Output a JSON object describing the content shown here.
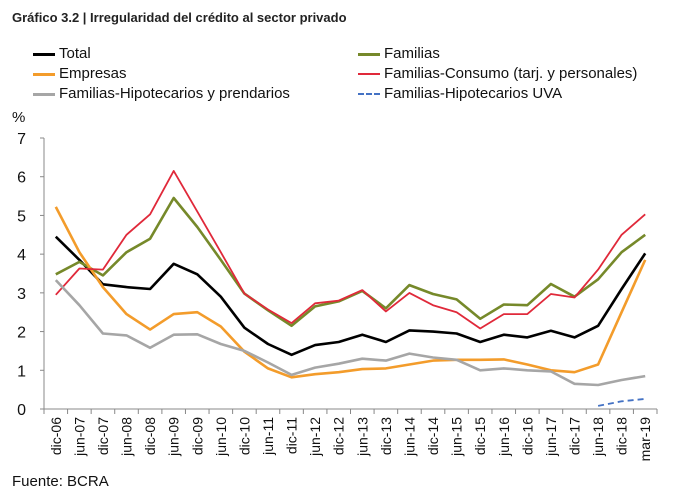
{
  "title": "Gráfico 3.2 | Irregularidad del crédito al sector privado",
  "source": "Fuente: BCRA",
  "chart_data": {
    "type": "line",
    "ylabel": "%",
    "ylim": [
      0,
      7
    ],
    "yticks": [
      "0",
      "1",
      "2",
      "3",
      "4",
      "5",
      "6",
      "7"
    ],
    "grid": false,
    "legend": "top",
    "categories": [
      "dic-06",
      "jun-07",
      "dic-07",
      "jun-08",
      "dic-08",
      "jun-09",
      "dic-09",
      "jun-10",
      "dic-10",
      "jun-11",
      "dic-11",
      "jun-12",
      "dic-12",
      "jun-13",
      "dic-13",
      "jun-14",
      "dic-14",
      "jun-15",
      "dic-15",
      "jun-16",
      "dic-16",
      "jun-17",
      "dic-17",
      "jun-18",
      "dic-18",
      "mar-19"
    ],
    "series": [
      {
        "name": "Total",
        "color": "#000000",
        "dash": false,
        "values": [
          4.45,
          3.85,
          3.22,
          3.15,
          3.1,
          3.75,
          3.48,
          2.9,
          2.1,
          1.68,
          1.4,
          1.65,
          1.73,
          1.92,
          1.73,
          2.03,
          2.0,
          1.95,
          1.73,
          1.92,
          1.85,
          2.02,
          1.85,
          2.15,
          3.1,
          4.02
        ]
      },
      {
        "name": "Familias",
        "color": "#76892a",
        "dash": false,
        "values": [
          3.48,
          3.8,
          3.45,
          4.05,
          4.4,
          5.45,
          4.7,
          3.85,
          2.98,
          2.55,
          2.15,
          2.65,
          2.78,
          3.05,
          2.6,
          3.2,
          2.97,
          2.83,
          2.33,
          2.7,
          2.68,
          3.23,
          2.9,
          3.35,
          4.05,
          4.5
        ]
      },
      {
        "name": "Empresas",
        "color": "#f39c2b",
        "dash": false,
        "values": [
          5.22,
          4.05,
          3.15,
          2.45,
          2.05,
          2.45,
          2.5,
          2.13,
          1.48,
          1.05,
          0.82,
          0.9,
          0.95,
          1.03,
          1.05,
          1.15,
          1.25,
          1.27,
          1.27,
          1.28,
          1.15,
          1.0,
          0.95,
          1.15,
          2.5,
          3.85
        ]
      },
      {
        "name": "Familias-Consumo (tarj. y personales)",
        "color": "#e0293a",
        "dash": false,
        "values": [
          2.95,
          3.63,
          3.6,
          4.5,
          5.03,
          6.15,
          5.1,
          4.05,
          2.98,
          2.57,
          2.22,
          2.73,
          2.8,
          3.07,
          2.52,
          3.0,
          2.68,
          2.5,
          2.08,
          2.45,
          2.45,
          2.97,
          2.88,
          3.6,
          4.5,
          5.03
        ]
      },
      {
        "name": "Familias-Hipotecarios y prendarios",
        "color": "#a6a6a6",
        "dash": false,
        "values": [
          3.33,
          2.68,
          1.95,
          1.9,
          1.58,
          1.92,
          1.93,
          1.68,
          1.5,
          1.2,
          0.88,
          1.07,
          1.17,
          1.3,
          1.25,
          1.43,
          1.33,
          1.27,
          1.0,
          1.05,
          1.0,
          0.97,
          0.65,
          0.62,
          0.75,
          0.85
        ]
      },
      {
        "name": "Familias-Hipotecarios UVA",
        "color": "#4472c4",
        "dash": true,
        "values": [
          null,
          null,
          null,
          null,
          null,
          null,
          null,
          null,
          null,
          null,
          null,
          null,
          null,
          null,
          null,
          null,
          null,
          null,
          null,
          null,
          null,
          null,
          null,
          0.08,
          0.2,
          0.26
        ]
      }
    ]
  }
}
